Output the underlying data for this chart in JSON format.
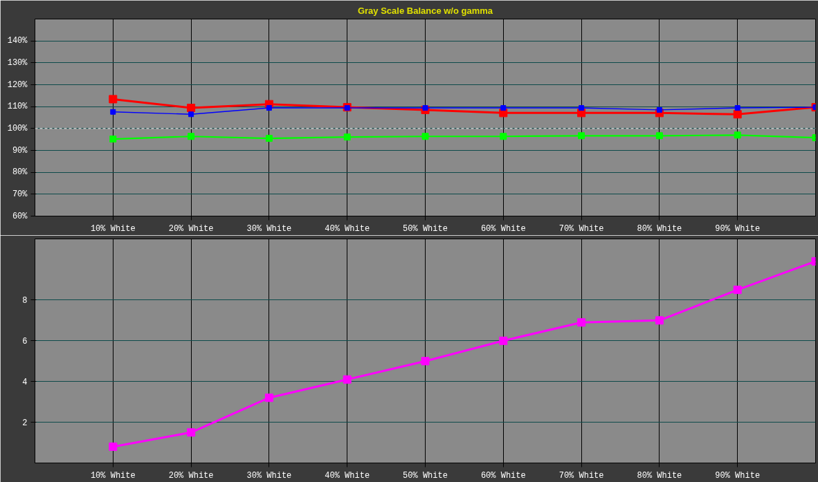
{
  "chart_data": [
    {
      "type": "line",
      "title": "Gray Scale Balance w/o gamma",
      "x": [
        10,
        20,
        30,
        40,
        50,
        60,
        70,
        80,
        90,
        100
      ],
      "series": [
        {
          "color": "#ff0000",
          "values": [
            113.4,
            109.4,
            111.1,
            109.7,
            108.5,
            107.1,
            107.1,
            107.1,
            106.5,
            109.7
          ]
        },
        {
          "color": "#00ff00",
          "values": [
            95.2,
            96.4,
            95.5,
            96.1,
            96.4,
            96.4,
            96.7,
            96.7,
            97.0,
            95.8
          ]
        },
        {
          "color": "#0000ff",
          "values": [
            107.6,
            106.5,
            109.4,
            109.4,
            109.4,
            109.4,
            109.4,
            108.5,
            109.4,
            109.7
          ]
        }
      ],
      "xlim": [
        0,
        100
      ],
      "xticks": [
        {
          "value": 10,
          "label": "10% White"
        },
        {
          "value": 20,
          "label": "20% White"
        },
        {
          "value": 30,
          "label": "30% White"
        },
        {
          "value": 40,
          "label": "40% White"
        },
        {
          "value": 50,
          "label": "50% White"
        },
        {
          "value": 60,
          "label": "60% White"
        },
        {
          "value": 70,
          "label": "70% White"
        },
        {
          "value": 80,
          "label": "80% White"
        },
        {
          "value": 90,
          "label": "90% White"
        }
      ],
      "ylim": [
        60,
        150
      ],
      "yticks": [
        {
          "value": 60,
          "label": "60%"
        },
        {
          "value": 70,
          "label": "70%"
        },
        {
          "value": 80,
          "label": "80%"
        },
        {
          "value": 90,
          "label": "90%"
        },
        {
          "value": 100,
          "label": "100%"
        },
        {
          "value": 110,
          "label": "110%"
        },
        {
          "value": 120,
          "label": "120%"
        },
        {
          "value": 130,
          "label": "130%"
        },
        {
          "value": 140,
          "label": "140%"
        }
      ],
      "ref_lines": [
        {
          "axis": "y",
          "value": 100,
          "color": "#ffffff",
          "line_style": "dashed"
        }
      ],
      "marker": "square",
      "grid": true
    },
    {
      "type": "line",
      "x": [
        10,
        20,
        30,
        40,
        50,
        60,
        70,
        80,
        90,
        100
      ],
      "series": [
        {
          "color": "#ff00ff",
          "values": [
            0.8,
            1.5,
            3.2,
            4.1,
            5.0,
            6.0,
            6.9,
            7.0,
            8.5,
            9.9
          ]
        }
      ],
      "xlim": [
        0,
        100
      ],
      "xticks": [
        {
          "value": 10,
          "label": "10% White"
        },
        {
          "value": 20,
          "label": "20% White"
        },
        {
          "value": 30,
          "label": "30% White"
        },
        {
          "value": 40,
          "label": "40% White"
        },
        {
          "value": 50,
          "label": "50% White"
        },
        {
          "value": 60,
          "label": "60% White"
        },
        {
          "value": 70,
          "label": "70% White"
        },
        {
          "value": 80,
          "label": "80% White"
        },
        {
          "value": 90,
          "label": "90% White"
        }
      ],
      "ylim": [
        0,
        11
      ],
      "yticks": [
        2,
        4,
        6,
        8
      ],
      "marker": "square",
      "grid": true
    }
  ]
}
